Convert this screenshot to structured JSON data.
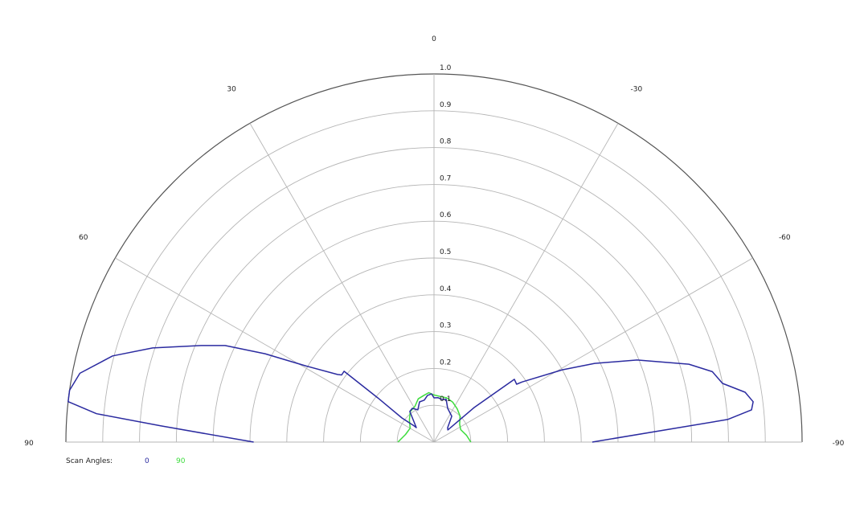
{
  "chart_data": {
    "type": "polar-line",
    "title": "",
    "angle_range": [
      90,
      -90
    ],
    "angle_ticks": [
      0,
      30,
      -30,
      60,
      -60,
      90,
      -90
    ],
    "angle_tick_labels": [
      "0",
      "30",
      "-30",
      "60",
      "-60",
      "90",
      "-90"
    ],
    "radial_range": [
      0,
      1.0
    ],
    "radial_ticks": [
      0.1,
      0.2,
      0.3,
      0.4,
      0.5,
      0.6,
      0.7,
      0.8,
      0.9,
      1.0
    ],
    "radial_tick_labels": [
      "0.1",
      "0.2",
      "0.3",
      "0.4",
      "0.5",
      "0.6",
      "0.7",
      "0.8",
      "0.9",
      "1.0"
    ],
    "grid": true,
    "legend": {
      "title": "Scan Angles:",
      "placement": "bottom-left"
    },
    "series": [
      {
        "name": "0",
        "color": "#2b2ba0",
        "points": [
          [
            90,
            0.49
          ],
          [
            86.6,
            0.744
          ],
          [
            85.2,
            0.92
          ],
          [
            83.7,
            1.0
          ],
          [
            81.9,
            1.0
          ],
          [
            79,
            0.98
          ],
          [
            75,
            0.904
          ],
          [
            71.5,
            0.806
          ],
          [
            67.5,
            0.685
          ],
          [
            65.2,
            0.625
          ],
          [
            62.4,
            0.518
          ],
          [
            59.3,
            0.406
          ],
          [
            55,
            0.32
          ],
          [
            54,
            0.31
          ],
          [
            51.8,
            0.311
          ],
          [
            51.8,
            0.194
          ],
          [
            53,
            0.109
          ],
          [
            51,
            0.07
          ],
          [
            50.7,
            0.062
          ],
          [
            38.3,
            0.106
          ],
          [
            32.7,
            0.109
          ],
          [
            26.6,
            0.098
          ],
          [
            19.8,
            0.116
          ],
          [
            13,
            0.117
          ],
          [
            7.9,
            0.128
          ],
          [
            2.9,
            0.131
          ],
          [
            0,
            0.12
          ],
          [
            -5.2,
            0.121
          ],
          [
            -10.7,
            0.118
          ],
          [
            -15.8,
            0.121
          ],
          [
            -22,
            0.099
          ],
          [
            -34.5,
            0.085
          ],
          [
            -43.4,
            0.054
          ],
          [
            -48.6,
            0.05
          ],
          [
            -49.3,
            0.144
          ],
          [
            -52,
            0.277
          ],
          [
            -55,
            0.274
          ],
          [
            -55.7,
            0.29
          ],
          [
            -60.6,
            0.4
          ],
          [
            -63.9,
            0.486
          ],
          [
            -68,
            0.595
          ],
          [
            -73,
            0.724
          ],
          [
            -75.8,
            0.78
          ],
          [
            -78.5,
            0.8
          ],
          [
            -80.9,
            0.856
          ],
          [
            -82.8,
            0.874
          ],
          [
            -84.2,
            0.867
          ],
          [
            -85.6,
            0.8
          ],
          [
            -90,
            0.43
          ]
        ]
      },
      {
        "name": "90",
        "color": "#3ddc3d",
        "points": [
          [
            90,
            0.098
          ],
          [
            75,
            0.08
          ],
          [
            60,
            0.075
          ],
          [
            48,
            0.09
          ],
          [
            38,
            0.105
          ],
          [
            28,
            0.11
          ],
          [
            20,
            0.125
          ],
          [
            12,
            0.13
          ],
          [
            6,
            0.135
          ],
          [
            0,
            0.128
          ],
          [
            -8,
            0.125
          ],
          [
            -16,
            0.125
          ],
          [
            -25,
            0.12
          ],
          [
            -35,
            0.11
          ],
          [
            -45,
            0.1
          ],
          [
            -55,
            0.085
          ],
          [
            -65,
            0.08
          ],
          [
            -78,
            0.09
          ],
          [
            -90,
            0.1
          ]
        ]
      }
    ]
  }
}
